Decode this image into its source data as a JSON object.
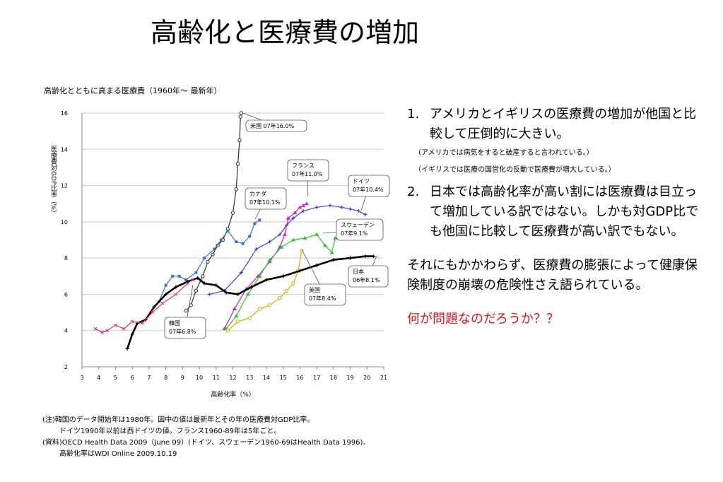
{
  "slide_title": "高齢化と医療費の増加",
  "chart_caption": "高齢化とともに高まる医療費（1960年〜 最新年）",
  "chart_data": {
    "type": "line",
    "title": "高齢化とともに高まる医療費（1960年〜 最新年）",
    "xlabel": "高齢化率（%）",
    "ylabel": "医療費対GDP比率（%）",
    "xlim": [
      3,
      21
    ],
    "ylim": [
      2,
      16
    ],
    "x_ticks": [
      3,
      4,
      5,
      6,
      7,
      8,
      9,
      10,
      11,
      12,
      13,
      14,
      15,
      16,
      17,
      18,
      19,
      20,
      21
    ],
    "y_ticks": [
      2,
      4,
      6,
      8,
      10,
      12,
      14,
      16
    ],
    "grid": true,
    "legend": "none",
    "series": [
      {
        "name": "米国",
        "color": "#2f2f2f",
        "marker": "o",
        "points": [
          [
            9.2,
            5.1
          ],
          [
            9.5,
            5.4
          ],
          [
            9.8,
            6.2
          ],
          [
            10.2,
            7.0
          ],
          [
            10.5,
            7.8
          ],
          [
            10.8,
            8.2
          ],
          [
            11.1,
            8.7
          ],
          [
            11.4,
            9.0
          ],
          [
            11.7,
            9.6
          ],
          [
            12.0,
            10.5
          ],
          [
            12.2,
            11.8
          ],
          [
            12.3,
            13.2
          ],
          [
            12.4,
            14.5
          ],
          [
            12.45,
            15.8
          ],
          [
            12.5,
            16.0
          ]
        ]
      },
      {
        "name": "カナダ",
        "color": "#3a6fd8",
        "marker": "s",
        "points": [
          [
            7.6,
            5.6
          ],
          [
            8.0,
            6.5
          ],
          [
            8.4,
            7.0
          ],
          [
            8.8,
            7.0
          ],
          [
            9.2,
            6.8
          ],
          [
            9.8,
            7.2
          ],
          [
            10.3,
            8.0
          ],
          [
            10.9,
            8.5
          ],
          [
            11.3,
            9.0
          ],
          [
            11.7,
            9.5
          ],
          [
            12.2,
            8.9
          ],
          [
            12.6,
            8.8
          ],
          [
            13.0,
            9.2
          ],
          [
            13.3,
            9.9
          ],
          [
            13.6,
            10.1
          ]
        ]
      },
      {
        "name": "ドイツ",
        "color": "#3a3fe8",
        "marker": "+",
        "points": [
          [
            10.6,
            6.0
          ],
          [
            11.5,
            6.2
          ],
          [
            12.5,
            7.2
          ],
          [
            13.4,
            8.5
          ],
          [
            14.2,
            8.9
          ],
          [
            14.8,
            9.3
          ],
          [
            15.2,
            9.8
          ],
          [
            15.6,
            10.2
          ],
          [
            16.2,
            10.6
          ],
          [
            17.0,
            10.8
          ],
          [
            17.8,
            10.9
          ],
          [
            18.5,
            10.8
          ],
          [
            19.0,
            10.7
          ],
          [
            19.5,
            10.6
          ],
          [
            19.9,
            10.4
          ]
        ]
      },
      {
        "name": "フランス",
        "color": "#d21cd2",
        "marker": "^",
        "points": [
          [
            11.5,
            4.1
          ],
          [
            12.1,
            5.2
          ],
          [
            12.8,
            6.3
          ],
          [
            13.5,
            7.0
          ],
          [
            14.2,
            7.8
          ],
          [
            14.8,
            8.6
          ],
          [
            15.1,
            9.3
          ],
          [
            15.3,
            10.2
          ],
          [
            15.7,
            10.5
          ],
          [
            16.0,
            10.8
          ],
          [
            16.2,
            10.9
          ],
          [
            16.4,
            11.0
          ]
        ]
      },
      {
        "name": "スウェーデン",
        "color": "#22cc22",
        "marker": "^",
        "points": [
          [
            11.6,
            4.1
          ],
          [
            12.2,
            4.8
          ],
          [
            12.9,
            6.0
          ],
          [
            13.6,
            7.0
          ],
          [
            14.2,
            7.9
          ],
          [
            14.9,
            8.6
          ],
          [
            15.6,
            9.0
          ],
          [
            16.3,
            9.1
          ],
          [
            17.0,
            9.3
          ],
          [
            17.5,
            8.7
          ],
          [
            17.9,
            8.3
          ],
          [
            18.1,
            9.1
          ]
        ]
      },
      {
        "name": "英国",
        "color": "#c9b400",
        "marker": "o",
        "points": [
          [
            11.7,
            4.0
          ],
          [
            12.3,
            4.5
          ],
          [
            13.0,
            4.7
          ],
          [
            13.6,
            5.2
          ],
          [
            14.2,
            5.4
          ],
          [
            14.8,
            5.8
          ],
          [
            15.2,
            6.2
          ],
          [
            15.6,
            6.6
          ],
          [
            15.9,
            7.3
          ],
          [
            16.1,
            8.4
          ]
        ]
      },
      {
        "name": "日本",
        "color": "#000000",
        "marker": "+",
        "points": [
          [
            5.7,
            3.0
          ],
          [
            6.0,
            3.8
          ],
          [
            6.3,
            4.4
          ],
          [
            6.8,
            4.6
          ],
          [
            7.3,
            5.3
          ],
          [
            8.0,
            6.0
          ],
          [
            8.6,
            6.4
          ],
          [
            9.3,
            6.7
          ],
          [
            9.9,
            6.9
          ],
          [
            10.3,
            6.6
          ],
          [
            11.0,
            6.5
          ],
          [
            11.6,
            6.1
          ],
          [
            12.3,
            6.0
          ],
          [
            13.1,
            6.4
          ],
          [
            14.0,
            6.8
          ],
          [
            15.0,
            7.0
          ],
          [
            16.0,
            7.3
          ],
          [
            17.0,
            7.6
          ],
          [
            18.0,
            7.9
          ],
          [
            19.0,
            8.0
          ],
          [
            19.9,
            8.1
          ],
          [
            20.4,
            8.1
          ]
        ]
      },
      {
        "name": "韓国",
        "color": "#e0306a",
        "marker": "x",
        "points": [
          [
            3.8,
            4.1
          ],
          [
            4.2,
            3.9
          ],
          [
            4.5,
            4.0
          ],
          [
            5.0,
            4.3
          ],
          [
            5.5,
            4.1
          ],
          [
            6.0,
            4.5
          ],
          [
            6.6,
            4.4
          ],
          [
            7.2,
            5.0
          ],
          [
            7.8,
            5.5
          ],
          [
            8.6,
            6.0
          ],
          [
            9.3,
            6.6
          ],
          [
            9.6,
            6.8
          ]
        ]
      }
    ],
    "annotations": [
      {
        "id": "us",
        "series": "米国",
        "lines": [
          "米国 07年16.0%"
        ]
      },
      {
        "id": "fr",
        "series": "フランス",
        "lines": [
          "フランス",
          "07年11.0%"
        ]
      },
      {
        "id": "de",
        "series": "ドイツ",
        "lines": [
          "ドイツ",
          "07年10.4%"
        ]
      },
      {
        "id": "ca",
        "series": "カナダ",
        "lines": [
          "カナダ",
          "07年10.1%"
        ]
      },
      {
        "id": "se",
        "series": "スウェーデン",
        "lines": [
          "スウェーデン",
          "07年9.1%"
        ]
      },
      {
        "id": "jp",
        "series": "日本",
        "lines": [
          "日本",
          "06年8.1%"
        ]
      },
      {
        "id": "uk",
        "series": "英国",
        "lines": [
          "英国",
          "07年8.4%"
        ]
      },
      {
        "id": "kr",
        "series": "韓国",
        "lines": [
          "韓国",
          "07年6.8%"
        ]
      }
    ]
  },
  "notes": [
    "(注)韓国のデータ開始年は1980年。図中の値は最新年とその年の医療費対GDP比率。",
    "ドイツ1990年以前は西ドイツの値。フランス1960-89年は5年ごと。",
    "(資料)OECD Health Data 2009（June 09）(ドイツ、スウェーデン1960-69はHealth Data 1996)、",
    "高齢化率はWDI Online 2009.10.19"
  ],
  "right": {
    "p1_num": "1.",
    "p1_text": "アメリカとイギリスの医療費の増加が他国と比較して圧倒的に大きい。",
    "sub1": "（アメリカでは病気をすると破産すると言われている。）",
    "sub2": "（イギリスでは医療の国営化の反動で医療費が増大している。）",
    "p2_num": "2.",
    "p2_text": "日本では高齢化率が高い割には医療費は目立って増加している訳ではない。しかも対GDP比でも他国に比較して医療費が高い訳でもない。",
    "para": "それにもかかわらず、医療費の膨張によって健康保険制度の崩壊の危険性さえ語られている。",
    "question": "何が問題なのだろうか？？"
  }
}
